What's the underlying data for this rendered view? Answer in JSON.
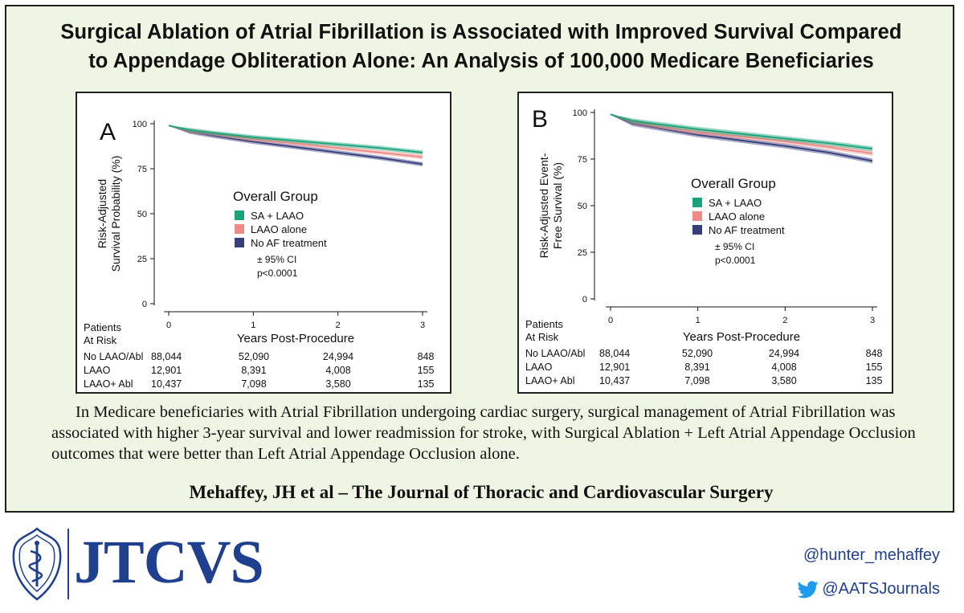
{
  "title_line1": "Surgical Ablation of Atrial Fibrillation is Associated with Improved Survival Compared",
  "title_line2": "to Appendage Obliteration Alone: An Analysis of 100,000 Medicare Beneficiaries",
  "summary": "In Medicare beneficiaries with Atrial Fibrillation undergoing cardiac surgery, surgical management of Atrial Fibrillation was associated with higher 3-year survival and lower readmission for stroke, with Surgical Ablation + Left Atrial Appendage Occlusion outcomes that were better than Left Atrial Appendage Occlusion alone.",
  "citation": "Mehaffey, JH et al – The Journal of Thoracic and Cardiovascular Surgery",
  "brand": "JTCVS",
  "handle_hunter": "@hunter_mehaffey",
  "handle_aats": "@AATSJournals",
  "colors": {
    "sa_laao": "#1aa37a",
    "laao_alone": "#f08a86",
    "no_af": "#363e7c",
    "background": "#eef5e2",
    "brand": "#1f3f8f"
  },
  "chart_data": [
    {
      "type": "line",
      "panel_label": "A",
      "ylabel_lines": [
        "Risk-Adjusted",
        "Survival Probability (%)"
      ],
      "xlabel": "Years Post-Procedure",
      "xlim": [
        0,
        3
      ],
      "ylim": [
        0,
        100
      ],
      "x_ticks": [
        0,
        1,
        2,
        3
      ],
      "y_ticks": [
        0,
        25,
        50,
        75,
        100
      ],
      "legend_title": "Overall Group",
      "legend_notes": [
        "± 95% CI",
        "p<0.0001"
      ],
      "x": [
        0,
        0.25,
        0.5,
        1,
        1.5,
        2,
        2.5,
        3
      ],
      "series": [
        {
          "name": "SA + LAAO",
          "color": "#1aa37a",
          "values": [
            99,
            96.5,
            95,
            92.5,
            90.5,
            88.5,
            86.5,
            84
          ]
        },
        {
          "name": "LAAO alone",
          "color": "#f08a86",
          "values": [
            99,
            96,
            94.5,
            91.5,
            89,
            86.5,
            84,
            81.5
          ]
        },
        {
          "name": "No AF treatment",
          "color": "#363e7c",
          "values": [
            99,
            95.5,
            93.5,
            90,
            87,
            84,
            81,
            77.5
          ]
        }
      ],
      "ci_halfwidth": 1.2,
      "risk_table": {
        "header_lines": [
          "Patients",
          "At Risk"
        ],
        "rows": [
          {
            "label": "No LAAO/Abl",
            "values": [
              "88,044",
              "52,090",
              "24,994",
              "848"
            ]
          },
          {
            "label": "LAAO",
            "values": [
              "12,901",
              "8,391",
              "4,008",
              "155"
            ]
          },
          {
            "label": "LAAO+ Abl",
            "values": [
              "10,437",
              "7,098",
              "3,580",
              "135"
            ]
          }
        ]
      }
    },
    {
      "type": "line",
      "panel_label": "B",
      "ylabel_lines": [
        "Risk-Adjusted Event-",
        "Free Survival (%)"
      ],
      "xlabel": "Years Post-Procedure",
      "xlim": [
        0,
        3
      ],
      "ylim": [
        0,
        100
      ],
      "x_ticks": [
        0,
        1,
        2,
        3
      ],
      "y_ticks": [
        0,
        25,
        50,
        75,
        100
      ],
      "legend_title": "Overall Group",
      "legend_notes": [
        "± 95% CI",
        "p<0.0001"
      ],
      "x": [
        0,
        0.25,
        0.5,
        1,
        1.5,
        2,
        2.5,
        3
      ],
      "series": [
        {
          "name": "SA + LAAO",
          "color": "#1aa37a",
          "values": [
            99,
            95.5,
            94,
            91,
            88.5,
            86,
            83.5,
            80.5
          ]
        },
        {
          "name": "LAAO alone",
          "color": "#f08a86",
          "values": [
            99,
            95,
            93,
            89.5,
            87,
            84.5,
            81.5,
            78
          ]
        },
        {
          "name": "No AF treatment",
          "color": "#363e7c",
          "values": [
            99,
            94,
            92,
            88,
            85,
            82,
            78.5,
            74
          ]
        }
      ],
      "ci_halfwidth": 1.3,
      "risk_table": {
        "header_lines": [
          "Patients",
          "At Risk"
        ],
        "rows": [
          {
            "label": "No LAAO/Abl",
            "values": [
              "88,044",
              "52,090",
              "24,994",
              "848"
            ]
          },
          {
            "label": "LAAO",
            "values": [
              "12,901",
              "8,391",
              "4,008",
              "155"
            ]
          },
          {
            "label": "LAAO+ Abl",
            "values": [
              "10,437",
              "7,098",
              "3,580",
              "135"
            ]
          }
        ]
      }
    }
  ]
}
